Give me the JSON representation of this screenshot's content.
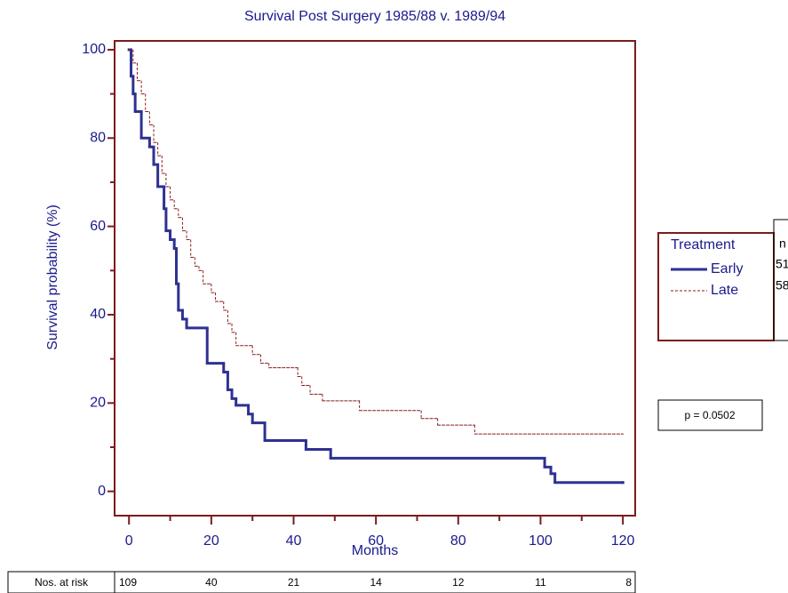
{
  "chart_data": {
    "type": "step",
    "title": "Survival Post Surgery 1985/88 v. 1989/94",
    "x_label": "Months",
    "y_label": "Survival probability (%)",
    "xlim": [
      -3.5,
      123
    ],
    "ylim": [
      -5.5,
      102
    ],
    "xticks": [
      0,
      20,
      40,
      60,
      80,
      100,
      120
    ],
    "yticks": [
      0,
      20,
      40,
      60,
      80,
      100
    ],
    "legend": {
      "title": "Treatment",
      "n_header": "n",
      "n": [
        "51",
        "58"
      ]
    },
    "series": [
      {
        "name": "Early",
        "color": "#2e3192",
        "style": "solid",
        "x": [
          0,
          0.5,
          1,
          1.5,
          3,
          5,
          6,
          7,
          8.5,
          9,
          10,
          11,
          11.5,
          12,
          13,
          14,
          19,
          23,
          24,
          25,
          26,
          29,
          30,
          33,
          43,
          49,
          101,
          102.5,
          103.5,
          120
        ],
        "values": [
          100,
          94,
          90,
          86,
          80,
          78,
          74,
          69,
          64,
          59,
          57,
          55,
          47,
          41,
          39,
          37,
          29,
          27,
          23,
          21,
          19.5,
          17.5,
          15.5,
          11.5,
          9.5,
          7.5,
          5.5,
          4,
          2,
          2
        ]
      },
      {
        "name": "Late",
        "color": "#8b1a1a",
        "style": "dashed",
        "x": [
          0,
          1,
          2,
          3,
          4,
          5,
          6,
          7,
          8,
          9,
          10,
          11,
          12,
          13,
          14,
          15,
          16,
          17,
          18,
          20,
          21,
          23,
          24,
          25,
          26,
          30,
          32,
          34,
          41,
          42,
          44,
          47,
          56,
          71,
          75,
          84,
          120
        ],
        "values": [
          100,
          97,
          93,
          90,
          86,
          83,
          79,
          76,
          72,
          69,
          66,
          64,
          62,
          59,
          57,
          53,
          51,
          50,
          47,
          45,
          43,
          41,
          38,
          36,
          33,
          31,
          29,
          28,
          26,
          24,
          22,
          20.5,
          18.3,
          16.5,
          15,
          13,
          13
        ]
      }
    ],
    "p_value": "p = 0.0502",
    "at_risk": {
      "label": "Nos. at risk",
      "values": [
        109,
        40,
        21,
        14,
        12,
        11,
        8
      ]
    }
  }
}
